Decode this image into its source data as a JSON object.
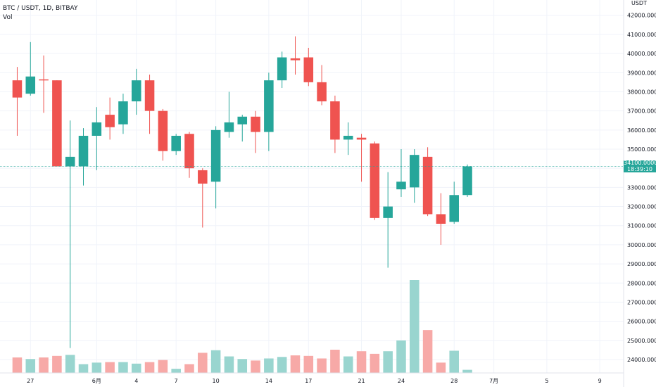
{
  "header": {
    "symbol_line": "BTC / USDT, 1D, BITBAY",
    "volume_label": "Vol"
  },
  "price_axis": {
    "currency": "USDT",
    "last_price_countdown": "18:39:10"
  },
  "colors": {
    "up": "#26a69a",
    "down": "#ef5350",
    "up_volume": "#99d5cf",
    "down_volume": "#f7a9a7",
    "grid": "#f0f3fa"
  },
  "chart_data": {
    "type": "candlestick",
    "ylim": [
      23300,
      42800
    ],
    "yticks": [
      24000,
      25000,
      26000,
      27000,
      28000,
      29000,
      30000,
      31000,
      32000,
      33000,
      34000,
      35000,
      36000,
      37000,
      38000,
      39000,
      40000,
      41000,
      42000
    ],
    "ytick_labels": [
      "24000.000000",
      "25000.000000",
      "26000.000000",
      "27000.000000",
      "28000.000000",
      "29000.000000",
      "30000.000000",
      "31000.000000",
      "32000.000000",
      "33000.000000",
      "34000.000000",
      "35000.000000",
      "36000.000000",
      "37000.000000",
      "38000.000000",
      "39000.000000",
      "40000.000000",
      "41000.000000",
      "42000.000000"
    ],
    "x_index_range": [
      -1.3,
      45.8
    ],
    "xticks": [
      {
        "index": 1,
        "label": "27"
      },
      {
        "index": 6,
        "label": "6月"
      },
      {
        "index": 9,
        "label": "4"
      },
      {
        "index": 12,
        "label": "7"
      },
      {
        "index": 15,
        "label": "10"
      },
      {
        "index": 19,
        "label": "14"
      },
      {
        "index": 22,
        "label": "17"
      },
      {
        "index": 26,
        "label": "21"
      },
      {
        "index": 29,
        "label": "24"
      },
      {
        "index": 33,
        "label": "28"
      },
      {
        "index": 36,
        "label": "7月"
      },
      {
        "index": 40,
        "label": "5"
      },
      {
        "index": 44,
        "label": "9"
      }
    ],
    "last_price": 34100,
    "candles": [
      {
        "open": 38600,
        "high": 39300,
        "low": 35700,
        "close": 37700
      },
      {
        "open": 37900,
        "high": 40600,
        "low": 37800,
        "close": 38800
      },
      {
        "open": 38650,
        "high": 39900,
        "low": 36900,
        "close": 38600
      },
      {
        "open": 38600,
        "high": 38600,
        "low": 34100,
        "close": 34100
      },
      {
        "open": 34100,
        "high": 36500,
        "low": 24600,
        "close": 34600
      },
      {
        "open": 34100,
        "high": 36100,
        "low": 33100,
        "close": 35700
      },
      {
        "open": 35700,
        "high": 37200,
        "low": 33900,
        "close": 36400
      },
      {
        "open": 36800,
        "high": 37700,
        "low": 35500,
        "close": 36150
      },
      {
        "open": 36300,
        "high": 37900,
        "low": 35800,
        "close": 37500
      },
      {
        "open": 37500,
        "high": 39200,
        "low": 36800,
        "close": 38600
      },
      {
        "open": 38600,
        "high": 38900,
        "low": 35800,
        "close": 37000
      },
      {
        "open": 37000,
        "high": 37100,
        "low": 34400,
        "close": 34900
      },
      {
        "open": 34900,
        "high": 35800,
        "low": 34700,
        "close": 35700
      },
      {
        "open": 35800,
        "high": 35900,
        "low": 33500,
        "close": 34000
      },
      {
        "open": 33900,
        "high": 34000,
        "low": 30900,
        "close": 33200
      },
      {
        "open": 33300,
        "high": 36200,
        "low": 31900,
        "close": 36000
      },
      {
        "open": 35900,
        "high": 38000,
        "low": 35600,
        "close": 36400
      },
      {
        "open": 36300,
        "high": 36800,
        "low": 35400,
        "close": 36700
      },
      {
        "open": 36700,
        "high": 37000,
        "low": 34800,
        "close": 35900
      },
      {
        "open": 35900,
        "high": 39000,
        "low": 34900,
        "close": 38600
      },
      {
        "open": 38600,
        "high": 40100,
        "low": 38200,
        "close": 39800
      },
      {
        "open": 39750,
        "high": 40900,
        "low": 38900,
        "close": 39650
      },
      {
        "open": 39800,
        "high": 40300,
        "low": 38300,
        "close": 38500
      },
      {
        "open": 38500,
        "high": 39400,
        "low": 37300,
        "close": 37500
      },
      {
        "open": 37500,
        "high": 37800,
        "low": 34800,
        "close": 35500
      },
      {
        "open": 35500,
        "high": 36400,
        "low": 34700,
        "close": 35700
      },
      {
        "open": 35600,
        "high": 35800,
        "low": 33300,
        "close": 35500
      },
      {
        "open": 35300,
        "high": 35400,
        "low": 31300,
        "close": 31400
      },
      {
        "open": 31400,
        "high": 33800,
        "low": 28800,
        "close": 32000
      },
      {
        "open": 32900,
        "high": 35000,
        "low": 32500,
        "close": 33300
      },
      {
        "open": 33000,
        "high": 35000,
        "low": 32200,
        "close": 34700
      },
      {
        "open": 34600,
        "high": 35100,
        "low": 31500,
        "close": 31600
      },
      {
        "open": 31600,
        "high": 32700,
        "low": 30000,
        "close": 31100
      },
      {
        "open": 31200,
        "high": 33300,
        "low": 31100,
        "close": 32600
      },
      {
        "open": 32600,
        "high": 34200,
        "low": 32500,
        "close": 34100
      }
    ],
    "volumes": [
      30,
      27,
      30,
      33,
      35,
      17,
      20,
      21,
      21,
      18,
      21,
      25,
      8,
      17,
      39,
      44,
      32,
      27,
      24,
      28,
      31,
      34,
      33,
      28,
      45,
      32,
      42,
      37,
      42,
      63,
      180,
      83,
      20,
      43,
      6
    ]
  }
}
